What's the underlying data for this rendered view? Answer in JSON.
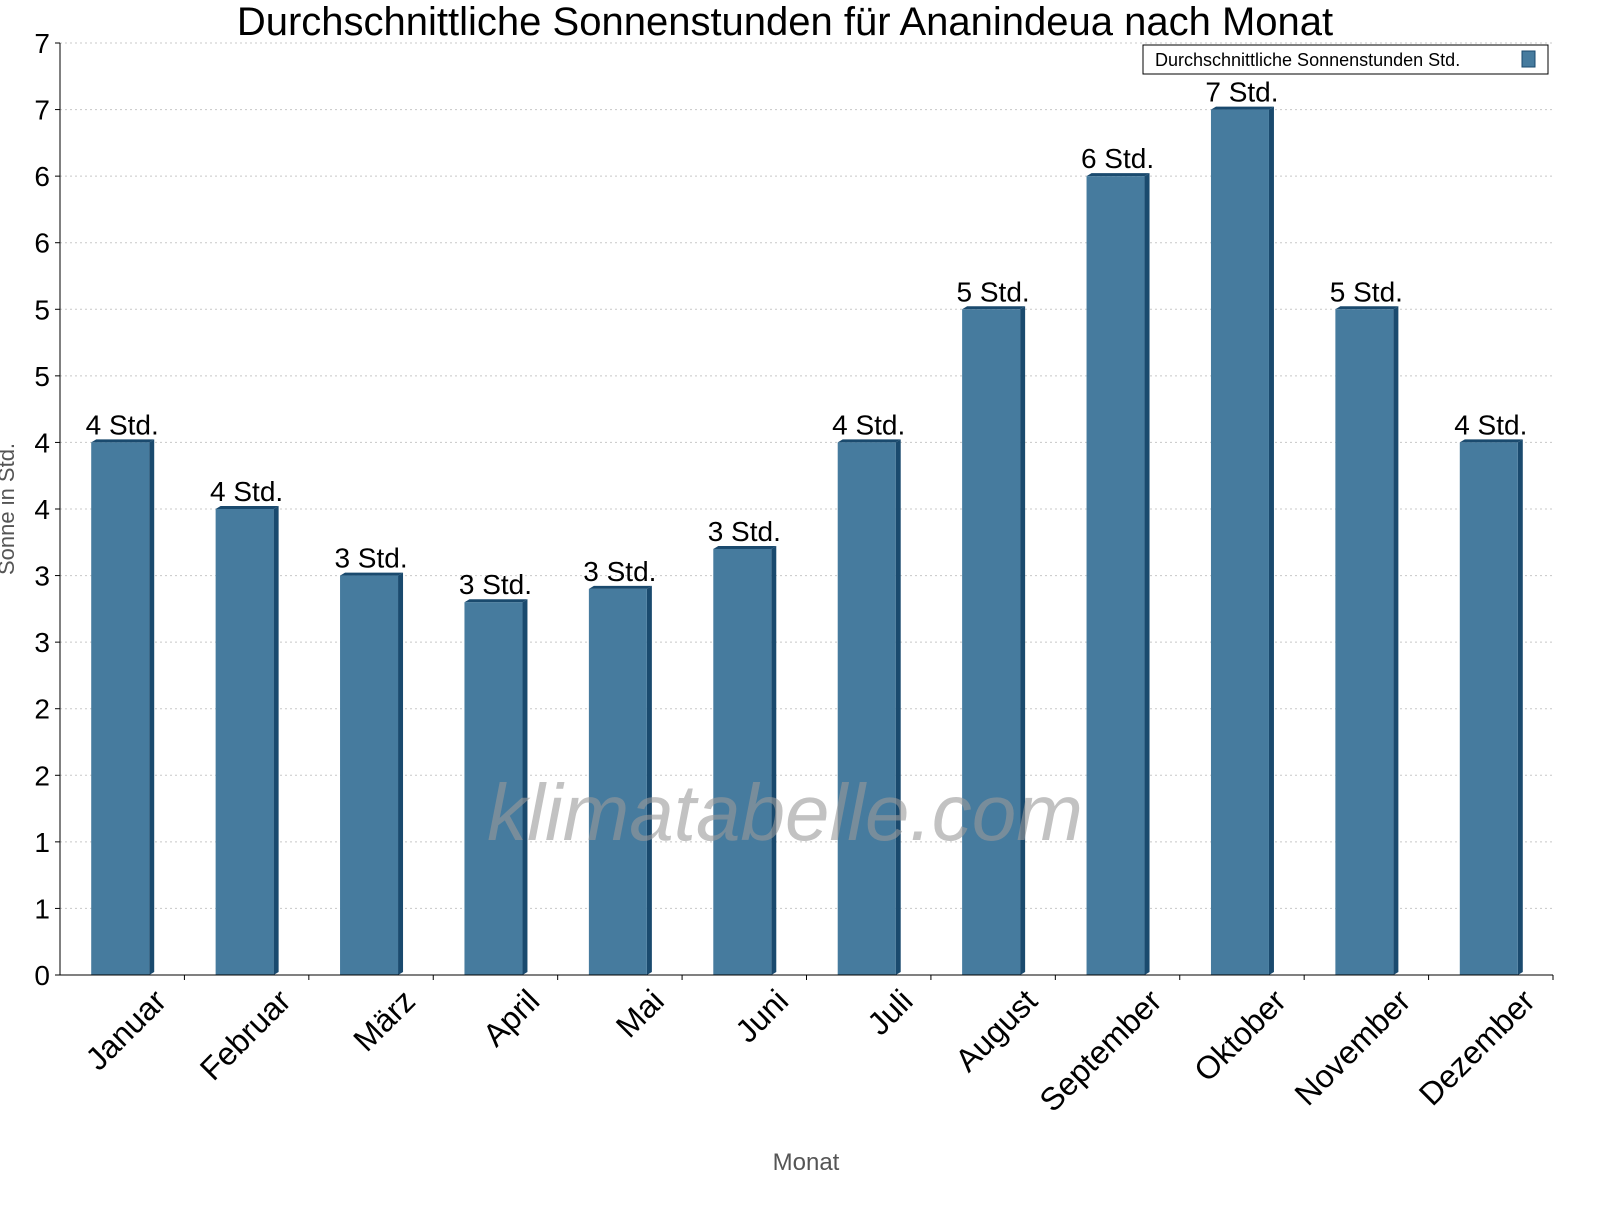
{
  "chart_data": {
    "type": "bar",
    "title": "Durchschnittliche Sonnenstunden für Ananindeua nach Monat",
    "xlabel": "Monat",
    "ylabel": "Sonne in Std.",
    "ylim": [
      0,
      7
    ],
    "yticks": [
      0,
      0.5,
      1,
      1.5,
      2,
      2.5,
      3,
      3.5,
      4,
      4.5,
      5,
      5.5,
      6,
      6.5,
      7
    ],
    "ytick_labels": [
      "0",
      "1",
      "1",
      "2",
      "2",
      "3",
      "3",
      "4",
      "4",
      "5",
      "5",
      "6",
      "6",
      "7",
      "7"
    ],
    "grid": true,
    "legend_position": "top-right",
    "categories": [
      "Januar",
      "Februar",
      "März",
      "April",
      "Mai",
      "Juni",
      "Juli",
      "August",
      "September",
      "Oktober",
      "November",
      "Dezember"
    ],
    "series": [
      {
        "name": "Durchschnittliche Sonnenstunden Std.",
        "values": [
          4.0,
          3.5,
          3.0,
          2.8,
          2.9,
          3.2,
          4.0,
          5.0,
          6.0,
          6.5,
          5.0,
          4.0
        ],
        "data_labels": [
          "4 Std.",
          "4 Std.",
          "3 Std.",
          "3 Std.",
          "3 Std.",
          "3 Std.",
          "4 Std.",
          "5 Std.",
          "6 Std.",
          "7 Std.",
          "5 Std.",
          "4 Std."
        ]
      }
    ],
    "colors": {
      "bar": "#467b9e",
      "bar_side": "#1a4a6e",
      "grid": "#c8c8c8"
    },
    "watermark": "klimatabelle.com"
  }
}
